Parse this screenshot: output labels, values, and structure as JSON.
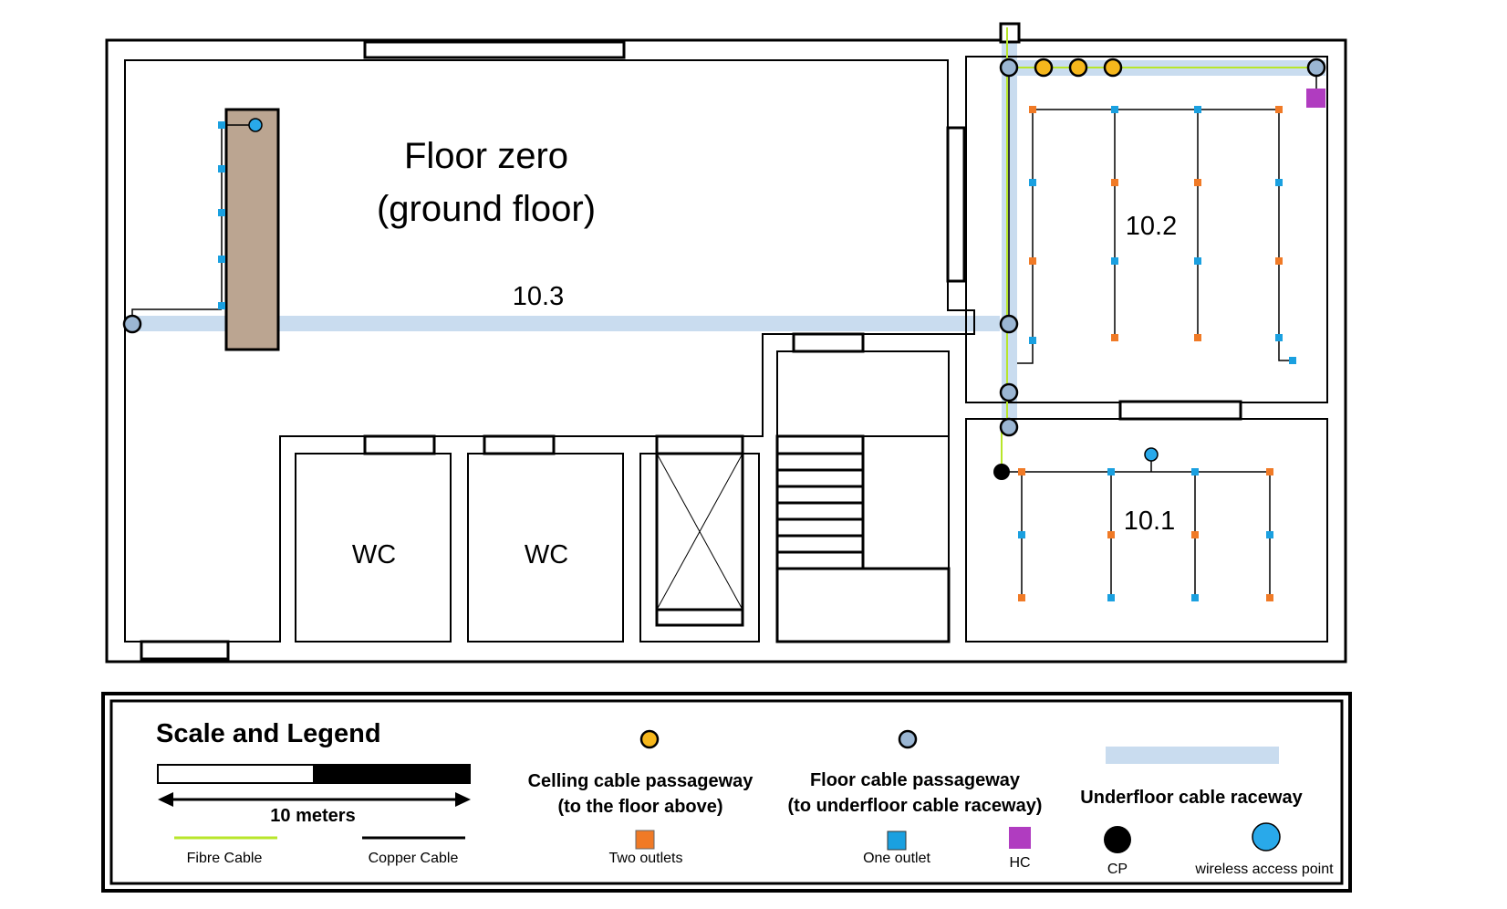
{
  "plan": {
    "title_line1": "Floor zero",
    "title_line2": "(ground floor)",
    "rooms": {
      "r103": "10.3",
      "r102": "10.2",
      "r101": "10.1",
      "wc1": "WC",
      "wc2": "WC"
    }
  },
  "legend": {
    "title": "Scale and Legend",
    "scale_label": "10 meters",
    "fibre_label": "Fibre Cable",
    "copper_label": "Copper Cable",
    "ceiling_line1": "Celling cable passageway",
    "ceiling_line2": "(to the floor above)",
    "two_outlets": "Two outlets",
    "floor_line1": "Floor cable passageway",
    "floor_line2": "(to underfloor cable raceway)",
    "one_outlet": "One outlet",
    "hc": "HC",
    "cp": "CP",
    "raceway": "Underfloor cable raceway",
    "wap": "wireless access point"
  },
  "colors": {
    "raceway": "#c9dcef",
    "floor_passage": "#9bb6d3",
    "ceiling_passage": "#f6b71c",
    "two_outlets": "#f07a26",
    "one_outlet": "#1aa0e0",
    "hc": "#b03cc0",
    "fibre": "#b8e62a",
    "wap": "#29a9ea",
    "wood": "#bba591"
  }
}
